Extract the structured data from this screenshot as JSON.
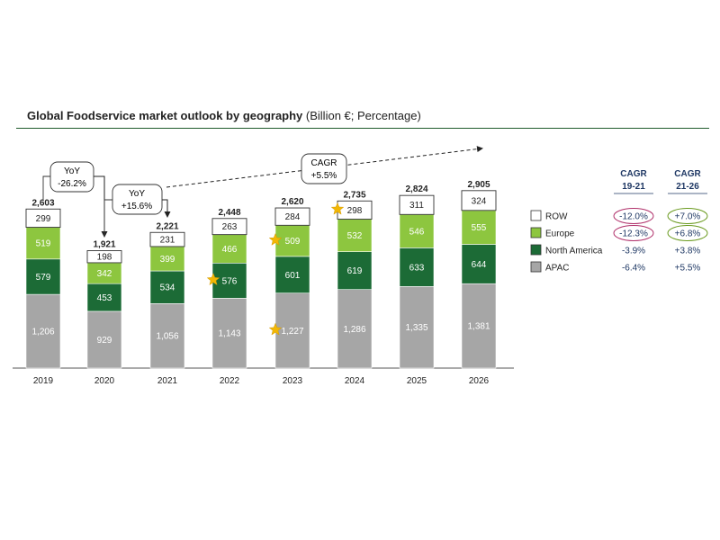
{
  "title": {
    "bold": "Global Foodservice market outlook by geography",
    "normal": " (Billion €; Percentage)"
  },
  "chart_data": {
    "type": "bar",
    "stacked": true,
    "title": "Global Foodservice market outlook by geography (Billion €; Percentage)",
    "categories": [
      "2019",
      "2020",
      "2021",
      "2022",
      "2023",
      "2024",
      "2025",
      "2026"
    ],
    "series": [
      {
        "name": "APAC",
        "values": [
          1206,
          929,
          1056,
          1143,
          1227,
          1286,
          1335,
          1381
        ],
        "labels": [
          "1,206",
          "929",
          "1,056",
          "1,143",
          "1,227",
          "1,286",
          "1,335",
          "1,381"
        ]
      },
      {
        "name": "North America",
        "values": [
          579,
          453,
          534,
          576,
          601,
          619,
          633,
          644
        ],
        "labels": [
          "579",
          "453",
          "534",
          "576",
          "601",
          "619",
          "633",
          "644"
        ]
      },
      {
        "name": "Europe",
        "values": [
          519,
          342,
          399,
          466,
          509,
          532,
          546,
          555
        ],
        "labels": [
          "519",
          "342",
          "399",
          "466",
          "509",
          "532",
          "546",
          "555"
        ]
      },
      {
        "name": "ROW",
        "values": [
          299,
          198,
          231,
          263,
          284,
          298,
          311,
          324
        ],
        "labels": [
          "299",
          "198",
          "231",
          "263",
          "284",
          "298",
          "311",
          "324"
        ]
      }
    ],
    "totals": [
      "2,603",
      "1,921",
      "2,221",
      "2,448",
      "2,620",
      "2,735",
      "2,824",
      "2,905"
    ],
    "colors": {
      "APAC": "#a6a6a6",
      "North America": "#1c6b36",
      "Europe": "#8dc63f",
      "ROW": "#ffffff"
    },
    "annotations": {
      "yoy_2020": {
        "line1": "YoY",
        "line2": "-26.2%"
      },
      "yoy_2021": {
        "line1": "YoY",
        "line2": "+15.6%"
      },
      "cagr": {
        "line1": "CAGR",
        "line2": "+5.5%"
      }
    },
    "stars": [
      {
        "year": "2022",
        "series": "North America"
      },
      {
        "year": "2023",
        "series": "Europe"
      },
      {
        "year": "2023",
        "series": "APAC"
      },
      {
        "year": "2024",
        "series": "ROW"
      }
    ],
    "legend": [
      "ROW",
      "Europe",
      "North America",
      "APAC"
    ],
    "cagr_table": {
      "headers": [
        {
          "line1": "CAGR",
          "line2": "19-21"
        },
        {
          "line1": "CAGR",
          "line2": "21-26"
        }
      ],
      "rows": [
        {
          "name": "ROW",
          "c1": "-12.0%",
          "c2": "+7.0%"
        },
        {
          "name": "Europe",
          "c1": "-12.3%",
          "c2": "+6.8%"
        },
        {
          "name": "North America",
          "c1": "-3.9%",
          "c2": "+3.8%"
        },
        {
          "name": "APAC",
          "c1": "-6.4%",
          "c2": "+5.5%"
        }
      ],
      "circled": [
        "ROW",
        "Europe"
      ]
    }
  }
}
